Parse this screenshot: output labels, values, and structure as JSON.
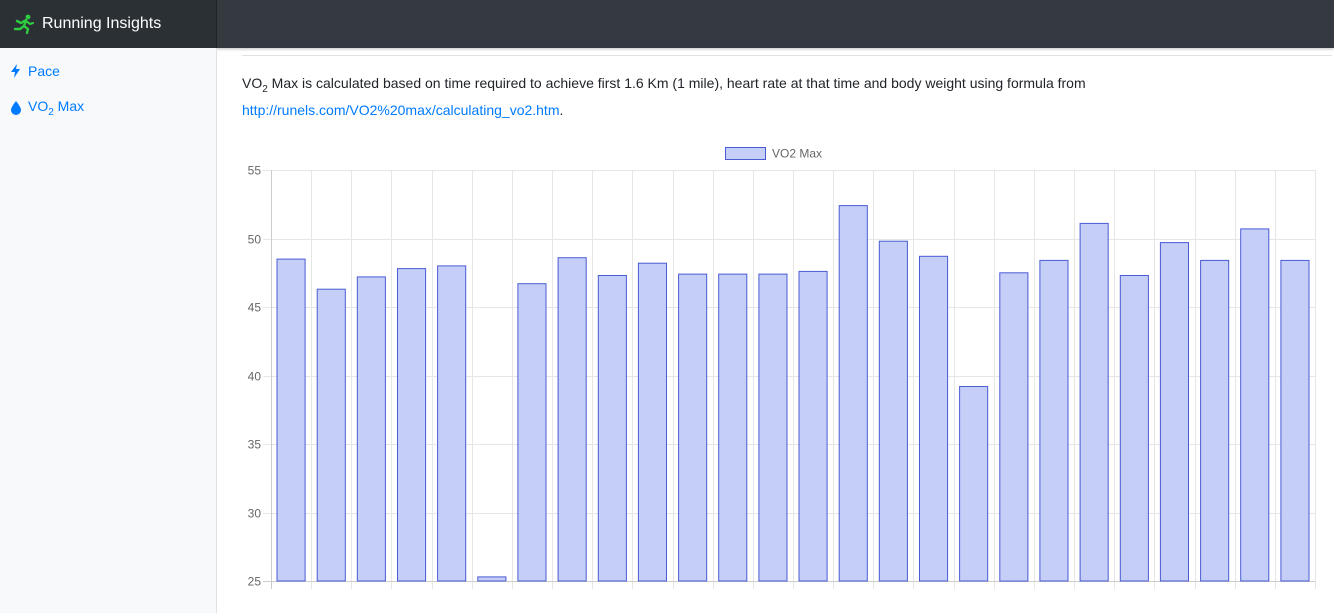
{
  "app": {
    "title": "Running Insights",
    "icon": "runner-icon",
    "brand_icon_color": "#2ecc40"
  },
  "sidebar": {
    "items": [
      {
        "label": "Pace",
        "icon": "bolt-icon"
      },
      {
        "label_prefix": "VO",
        "label_sub": "2",
        "label_suffix": " Max",
        "icon": "droplet-icon"
      }
    ]
  },
  "description": {
    "prefix": "VO",
    "sub": "2",
    "text": " Max is calculated based on time required to achieve first 1.6 Km (1 mile), heart rate at that time and body weight using formula from",
    "link": "http://runels.com/VO2%20max/calculating_vo2.htm",
    "period": "."
  },
  "chart_data": {
    "type": "bar",
    "legend": {
      "label": "VO2 Max",
      "position": "top"
    },
    "ylim": [
      25,
      55
    ],
    "yticks": [
      55,
      50,
      45,
      40,
      35,
      30,
      25
    ],
    "grid": true,
    "series": [
      {
        "name": "VO2 Max",
        "values": [
          48.5,
          46.3,
          47.2,
          47.8,
          48.0,
          25.3,
          46.7,
          48.6,
          47.3,
          48.2,
          47.4,
          47.4,
          47.4,
          47.6,
          52.4,
          49.8,
          48.7,
          39.2,
          47.5,
          48.4,
          51.1,
          47.3,
          49.7,
          48.4,
          50.7,
          48.4
        ],
        "fill": "#c5cef7",
        "stroke": "#4a5bd4"
      }
    ]
  }
}
